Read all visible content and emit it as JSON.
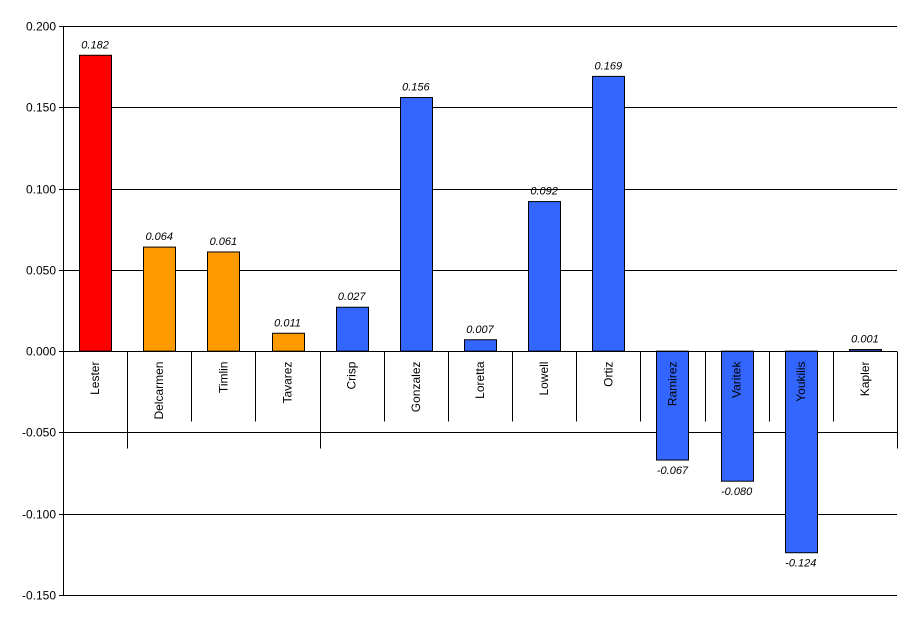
{
  "chart_data": {
    "type": "bar",
    "title": "",
    "xlabel": "",
    "ylabel": "",
    "ylim": [
      -0.15,
      0.2
    ],
    "yticks": [
      "0.200",
      "0.150",
      "0.100",
      "0.050",
      "0.000",
      "-0.050",
      "-0.100",
      "-0.150"
    ],
    "grid": true,
    "categories": [
      "Lester",
      "Delcarmen",
      "Timlin",
      "Tavarez",
      "Crisp",
      "Gonzalez",
      "Loretta",
      "Lowell",
      "Ortiz",
      "Ramirez",
      "Varitek",
      "Youkilis",
      "Kapler"
    ],
    "values": [
      0.182,
      0.064,
      0.061,
      0.011,
      0.027,
      0.156,
      0.007,
      0.092,
      0.169,
      -0.067,
      -0.08,
      -0.124,
      0.001
    ],
    "value_labels": [
      "0.182",
      "0.064",
      "0.061",
      "0.011",
      "0.027",
      "0.156",
      "0.007",
      "0.092",
      "0.169",
      "-0.067",
      "-0.080",
      "-0.124",
      "0.001"
    ],
    "colors": [
      "#ff0000",
      "#ff9900",
      "#ff9900",
      "#ff9900",
      "#3366ff",
      "#3366ff",
      "#3366ff",
      "#3366ff",
      "#3366ff",
      "#3366ff",
      "#3366ff",
      "#3366ff",
      "#3366ff"
    ]
  }
}
